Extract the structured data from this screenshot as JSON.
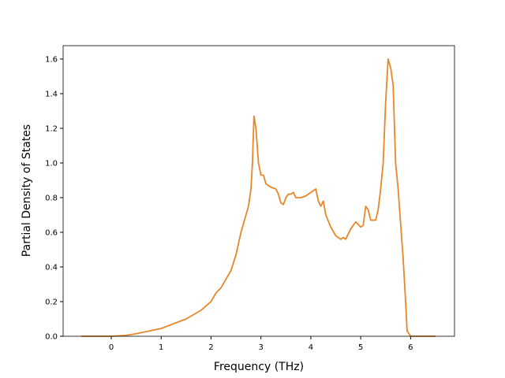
{
  "chart_data": {
    "type": "line",
    "xlabel": "Frequency (THz)",
    "ylabel": "Partial Density of States",
    "x": [
      -0.6,
      0,
      0.3,
      0.5,
      1,
      1.5,
      1.8,
      2,
      2.1,
      2.2,
      2.4,
      2.5,
      2.6,
      2.7,
      2.75,
      2.8,
      2.83,
      2.86,
      2.9,
      2.95,
      3.0,
      3.05,
      3.1,
      3.2,
      3.3,
      3.35,
      3.4,
      3.45,
      3.5,
      3.55,
      3.6,
      3.65,
      3.7,
      3.8,
      3.9,
      4.0,
      4.1,
      4.15,
      4.2,
      4.25,
      4.3,
      4.4,
      4.5,
      4.6,
      4.65,
      4.7,
      4.8,
      4.9,
      5.0,
      5.05,
      5.1,
      5.15,
      5.2,
      5.3,
      5.35,
      5.4,
      5.45,
      5.5,
      5.55,
      5.6,
      5.65,
      5.7,
      5.75,
      5.8,
      5.85,
      5.9,
      5.93,
      6.0,
      6.5
    ],
    "series": [
      {
        "color": "#e8862a",
        "values": [
          0,
          0,
          0.005,
          0.015,
          0.045,
          0.1,
          0.15,
          0.2,
          0.25,
          0.28,
          0.38,
          0.47,
          0.6,
          0.7,
          0.75,
          0.85,
          1.0,
          1.27,
          1.2,
          1.0,
          0.93,
          0.93,
          0.88,
          0.86,
          0.85,
          0.82,
          0.77,
          0.76,
          0.8,
          0.82,
          0.82,
          0.83,
          0.8,
          0.8,
          0.81,
          0.83,
          0.85,
          0.78,
          0.75,
          0.78,
          0.7,
          0.63,
          0.58,
          0.56,
          0.57,
          0.56,
          0.62,
          0.66,
          0.63,
          0.64,
          0.75,
          0.73,
          0.67,
          0.67,
          0.73,
          0.85,
          1.0,
          1.35,
          1.6,
          1.55,
          1.45,
          1.0,
          0.85,
          0.65,
          0.45,
          0.2,
          0.03,
          0,
          0
        ]
      }
    ],
    "xlim": [
      -0.965,
      6.88
    ],
    "ylim": [
      0,
      1.677
    ],
    "xticks": [
      0,
      1,
      2,
      3,
      4,
      5,
      6
    ],
    "yticks": [
      {
        "value": 0,
        "label": "0.0"
      },
      {
        "value": 0.2,
        "label": "0.2"
      },
      {
        "value": 0.4,
        "label": "0.4"
      },
      {
        "value": 0.6,
        "label": "0.6"
      },
      {
        "value": 0.8,
        "label": "0.8"
      },
      {
        "value": 1.0,
        "label": "1.0"
      },
      {
        "value": 1.2,
        "label": "1.2"
      },
      {
        "value": 1.4,
        "label": "1.4"
      },
      {
        "value": 1.6,
        "label": "1.6"
      }
    ],
    "grid": false
  }
}
